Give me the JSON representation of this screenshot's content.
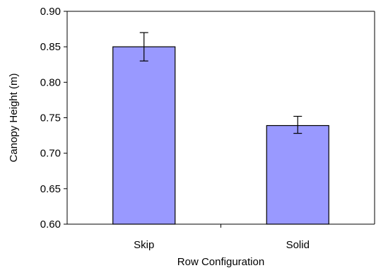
{
  "chart_data": {
    "type": "bar",
    "title": "",
    "xlabel": "Row Configuration",
    "ylabel": "Canopy Height (m)",
    "categories": [
      "Skip",
      "Solid"
    ],
    "values": [
      0.85,
      0.739
    ],
    "error_bars": [
      {
        "low": 0.83,
        "high": 0.87
      },
      {
        "low": 0.728,
        "high": 0.752
      }
    ],
    "ylim": [
      0.6,
      0.9
    ],
    "yticks": [
      "0.60",
      "0.65",
      "0.70",
      "0.75",
      "0.80",
      "0.85",
      "0.90"
    ],
    "grid": false,
    "legend": "none",
    "colors": {
      "bar_fill": "#9999ff",
      "bar_stroke": "#000000",
      "axis": "#000000",
      "error_bar": "#000000"
    }
  }
}
